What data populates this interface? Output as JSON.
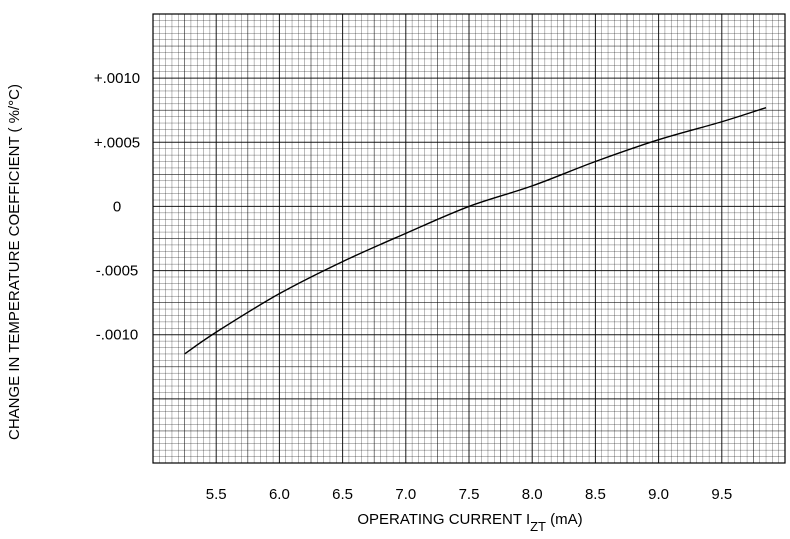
{
  "chart_data": {
    "type": "line",
    "title": "",
    "xlabel": "OPERATING CURRENT I",
    "xlabel_subscript": "ZT",
    "xlabel_unit": " (mA)",
    "ylabel": "CHANGE IN TEMPERATURE COEFFICIENT ( %/°C)",
    "xlim": [
      5.0,
      10.0
    ],
    "ylim": [
      -0.002,
      0.0015
    ],
    "grid": true,
    "x_ticks": [
      {
        "value": 5.5,
        "label": "5.5"
      },
      {
        "value": 6.0,
        "label": "6.0"
      },
      {
        "value": 6.5,
        "label": "6.5"
      },
      {
        "value": 7.0,
        "label": "7.0"
      },
      {
        "value": 7.5,
        "label": "7.5"
      },
      {
        "value": 8.0,
        "label": "8.0"
      },
      {
        "value": 8.5,
        "label": "8.5"
      },
      {
        "value": 9.0,
        "label": "9.0"
      },
      {
        "value": 9.5,
        "label": "9.5"
      }
    ],
    "y_ticks": [
      {
        "value": 0.001,
        "label": "+.0010"
      },
      {
        "value": 0.0005,
        "label": "+.0005"
      },
      {
        "value": 0.0,
        "label": "0"
      },
      {
        "value": -0.0005,
        "label": "-.0005"
      },
      {
        "value": -0.001,
        "label": "-.0010"
      }
    ],
    "series": [
      {
        "color": "#000000",
        "x": [
          5.25,
          5.5,
          6.0,
          6.5,
          7.0,
          7.5,
          8.0,
          8.5,
          9.0,
          9.5,
          9.85
        ],
        "y": [
          -0.00115,
          -0.00098,
          -0.00068,
          -0.00043,
          -0.00021,
          0.0,
          0.00016,
          0.00035,
          0.00052,
          0.00066,
          0.00077
        ]
      }
    ]
  }
}
